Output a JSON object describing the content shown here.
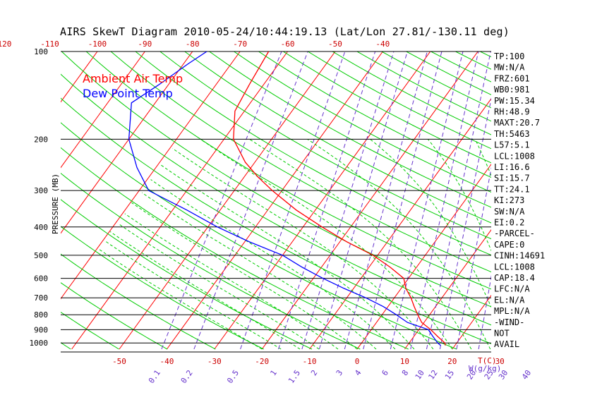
{
  "chart_data": {
    "type": "line",
    "title": "AIRS SkewT Diagram 2010-05-24/10:44:19.13 (Lat/Lon 27.81/-130.11 deg)",
    "ylabel": "PRESSURE (MB)",
    "ylim": [
      1050,
      100
    ],
    "y_scale": "log",
    "x_axis_unit_label": "T(C)",
    "mixing_ratio_unit_label": "W(g/kg)",
    "pressure_ticks": [
      100,
      200,
      300,
      400,
      500,
      600,
      700,
      800,
      900,
      1000
    ],
    "bottom_temp_ticks": [
      -50,
      -40,
      -30,
      -20,
      -10,
      0,
      10,
      20,
      30
    ],
    "top_temp_ticks": [
      -120,
      -110,
      -100,
      -90,
      -80,
      -70,
      -60,
      -50,
      -40
    ],
    "mixing_ratio_labels": [
      "0.1",
      "0.2",
      "0.5",
      "1",
      "1.5",
      "2",
      "3",
      "4",
      "6",
      "8",
      "10",
      "12",
      "15",
      "20",
      "25",
      "30",
      "40"
    ],
    "legend": [
      {
        "name": "Ambient Air Temp",
        "color": "#ff0000"
      },
      {
        "name": "Dew Point Temp",
        "color": "#0000ff"
      }
    ],
    "series": [
      {
        "name": "Ambient Air Temp",
        "color": "#ff0000",
        "points": [
          {
            "p": 100,
            "t": -64
          },
          {
            "p": 130,
            "t": -63
          },
          {
            "p": 160,
            "t": -62
          },
          {
            "p": 200,
            "t": -58
          },
          {
            "p": 240,
            "t": -52
          },
          {
            "p": 270,
            "t": -47
          },
          {
            "p": 300,
            "t": -42
          },
          {
            "p": 350,
            "t": -34
          },
          {
            "p": 400,
            "t": -26
          },
          {
            "p": 450,
            "t": -18.5
          },
          {
            "p": 500,
            "t": -11
          },
          {
            "p": 550,
            "t": -5.5
          },
          {
            "p": 600,
            "t": -1
          },
          {
            "p": 650,
            "t": 1
          },
          {
            "p": 700,
            "t": 3.5
          },
          {
            "p": 750,
            "t": 5.5
          },
          {
            "p": 800,
            "t": 7.5
          },
          {
            "p": 850,
            "t": 9.5
          },
          {
            "p": 900,
            "t": 12.5
          },
          {
            "p": 950,
            "t": 15
          },
          {
            "p": 1000,
            "t": 17.5
          },
          {
            "p": 1020,
            "t": 18
          }
        ]
      },
      {
        "name": "Dew Point Temp",
        "color": "#0000ff",
        "points": [
          {
            "p": 100,
            "t": -77
          },
          {
            "p": 110,
            "t": -79
          },
          {
            "p": 130,
            "t": -82
          },
          {
            "p": 150,
            "t": -85
          },
          {
            "p": 200,
            "t": -80
          },
          {
            "p": 250,
            "t": -74
          },
          {
            "p": 300,
            "t": -68
          },
          {
            "p": 350,
            "t": -57
          },
          {
            "p": 400,
            "t": -48
          },
          {
            "p": 450,
            "t": -39
          },
          {
            "p": 500,
            "t": -30
          },
          {
            "p": 550,
            "t": -24
          },
          {
            "p": 600,
            "t": -18
          },
          {
            "p": 650,
            "t": -12
          },
          {
            "p": 700,
            "t": -6
          },
          {
            "p": 750,
            "t": -1
          },
          {
            "p": 800,
            "t": 3
          },
          {
            "p": 850,
            "t": 6.5
          },
          {
            "p": 900,
            "t": 12
          },
          {
            "p": 950,
            "t": 14
          },
          {
            "p": 1000,
            "t": 16
          },
          {
            "p": 1020,
            "t": 17
          }
        ]
      }
    ],
    "indices": [
      "TP:100",
      "MW:N/A",
      "FRZ:601",
      "WB0:981",
      "PW:15.34",
      "RH:48.9",
      "MAXT:20.7",
      "TH:5463",
      "L57:5.1",
      "LCL:1008",
      "LI:16.6",
      "SI:15.7",
      "TT:24.1",
      "KI:273",
      "SW:N/A",
      "EI:0.2",
      "-PARCEL-",
      "CAPE:0",
      "CINH:14691",
      "LCL:1008",
      "CAP:18.4",
      "LFC:N/A",
      "EL:N/A",
      "MPL:N/A",
      "-WIND-",
      "NOT",
      "AVAIL"
    ],
    "colors": {
      "isotherm": "#ff0000",
      "dry_adiabat": "#00cc00",
      "moist_adiabat": "#00cc00",
      "mixing_ratio": "#6633cc",
      "tick_labels": "#cc0000",
      "isobar": "#000000"
    }
  }
}
